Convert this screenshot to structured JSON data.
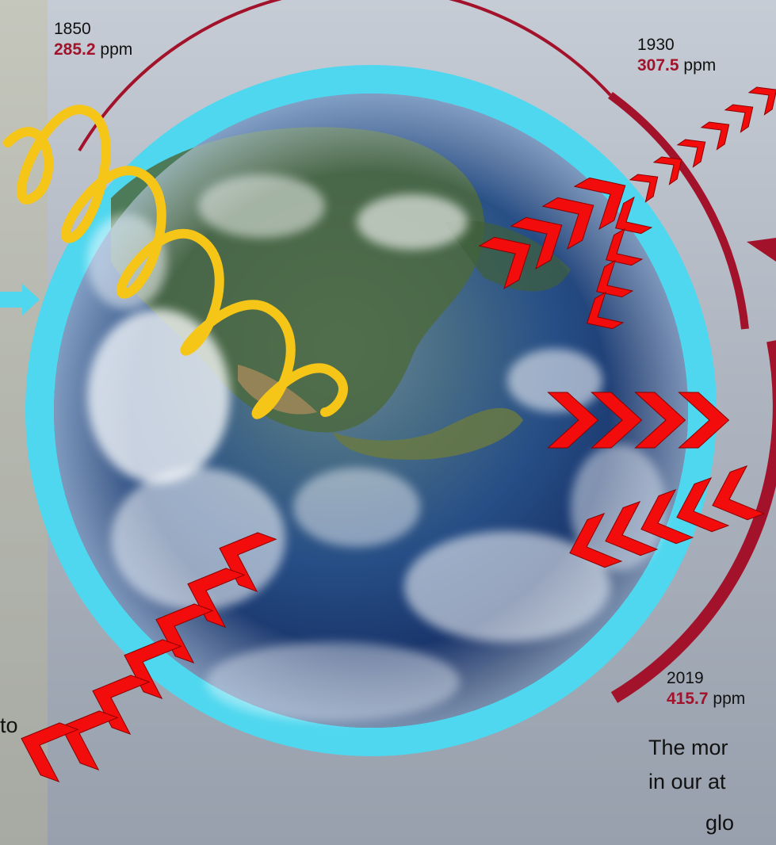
{
  "timeline": [
    {
      "year": "1850",
      "value": "285.2",
      "unit": "ppm"
    },
    {
      "year": "1930",
      "value": "307.5",
      "unit": "ppm"
    },
    {
      "year": "2019",
      "value": "415.7",
      "unit": "ppm"
    }
  ],
  "caption": {
    "line1": "The mor",
    "line2": "in our at",
    "line3": "glo"
  },
  "left_fragment": "to",
  "colors": {
    "atmosphere_ring": "#4fd7ef",
    "co2_arc": "#a3122b",
    "infrared_arrows": "#f20c0c",
    "sunlight_wave": "#f5c518",
    "ocean": "#1a3a7a"
  },
  "icons": {
    "sunlight": "sine-wave-icon",
    "infrared": "chevron-arrow-icon",
    "incoming": "arrow-right-icon"
  }
}
